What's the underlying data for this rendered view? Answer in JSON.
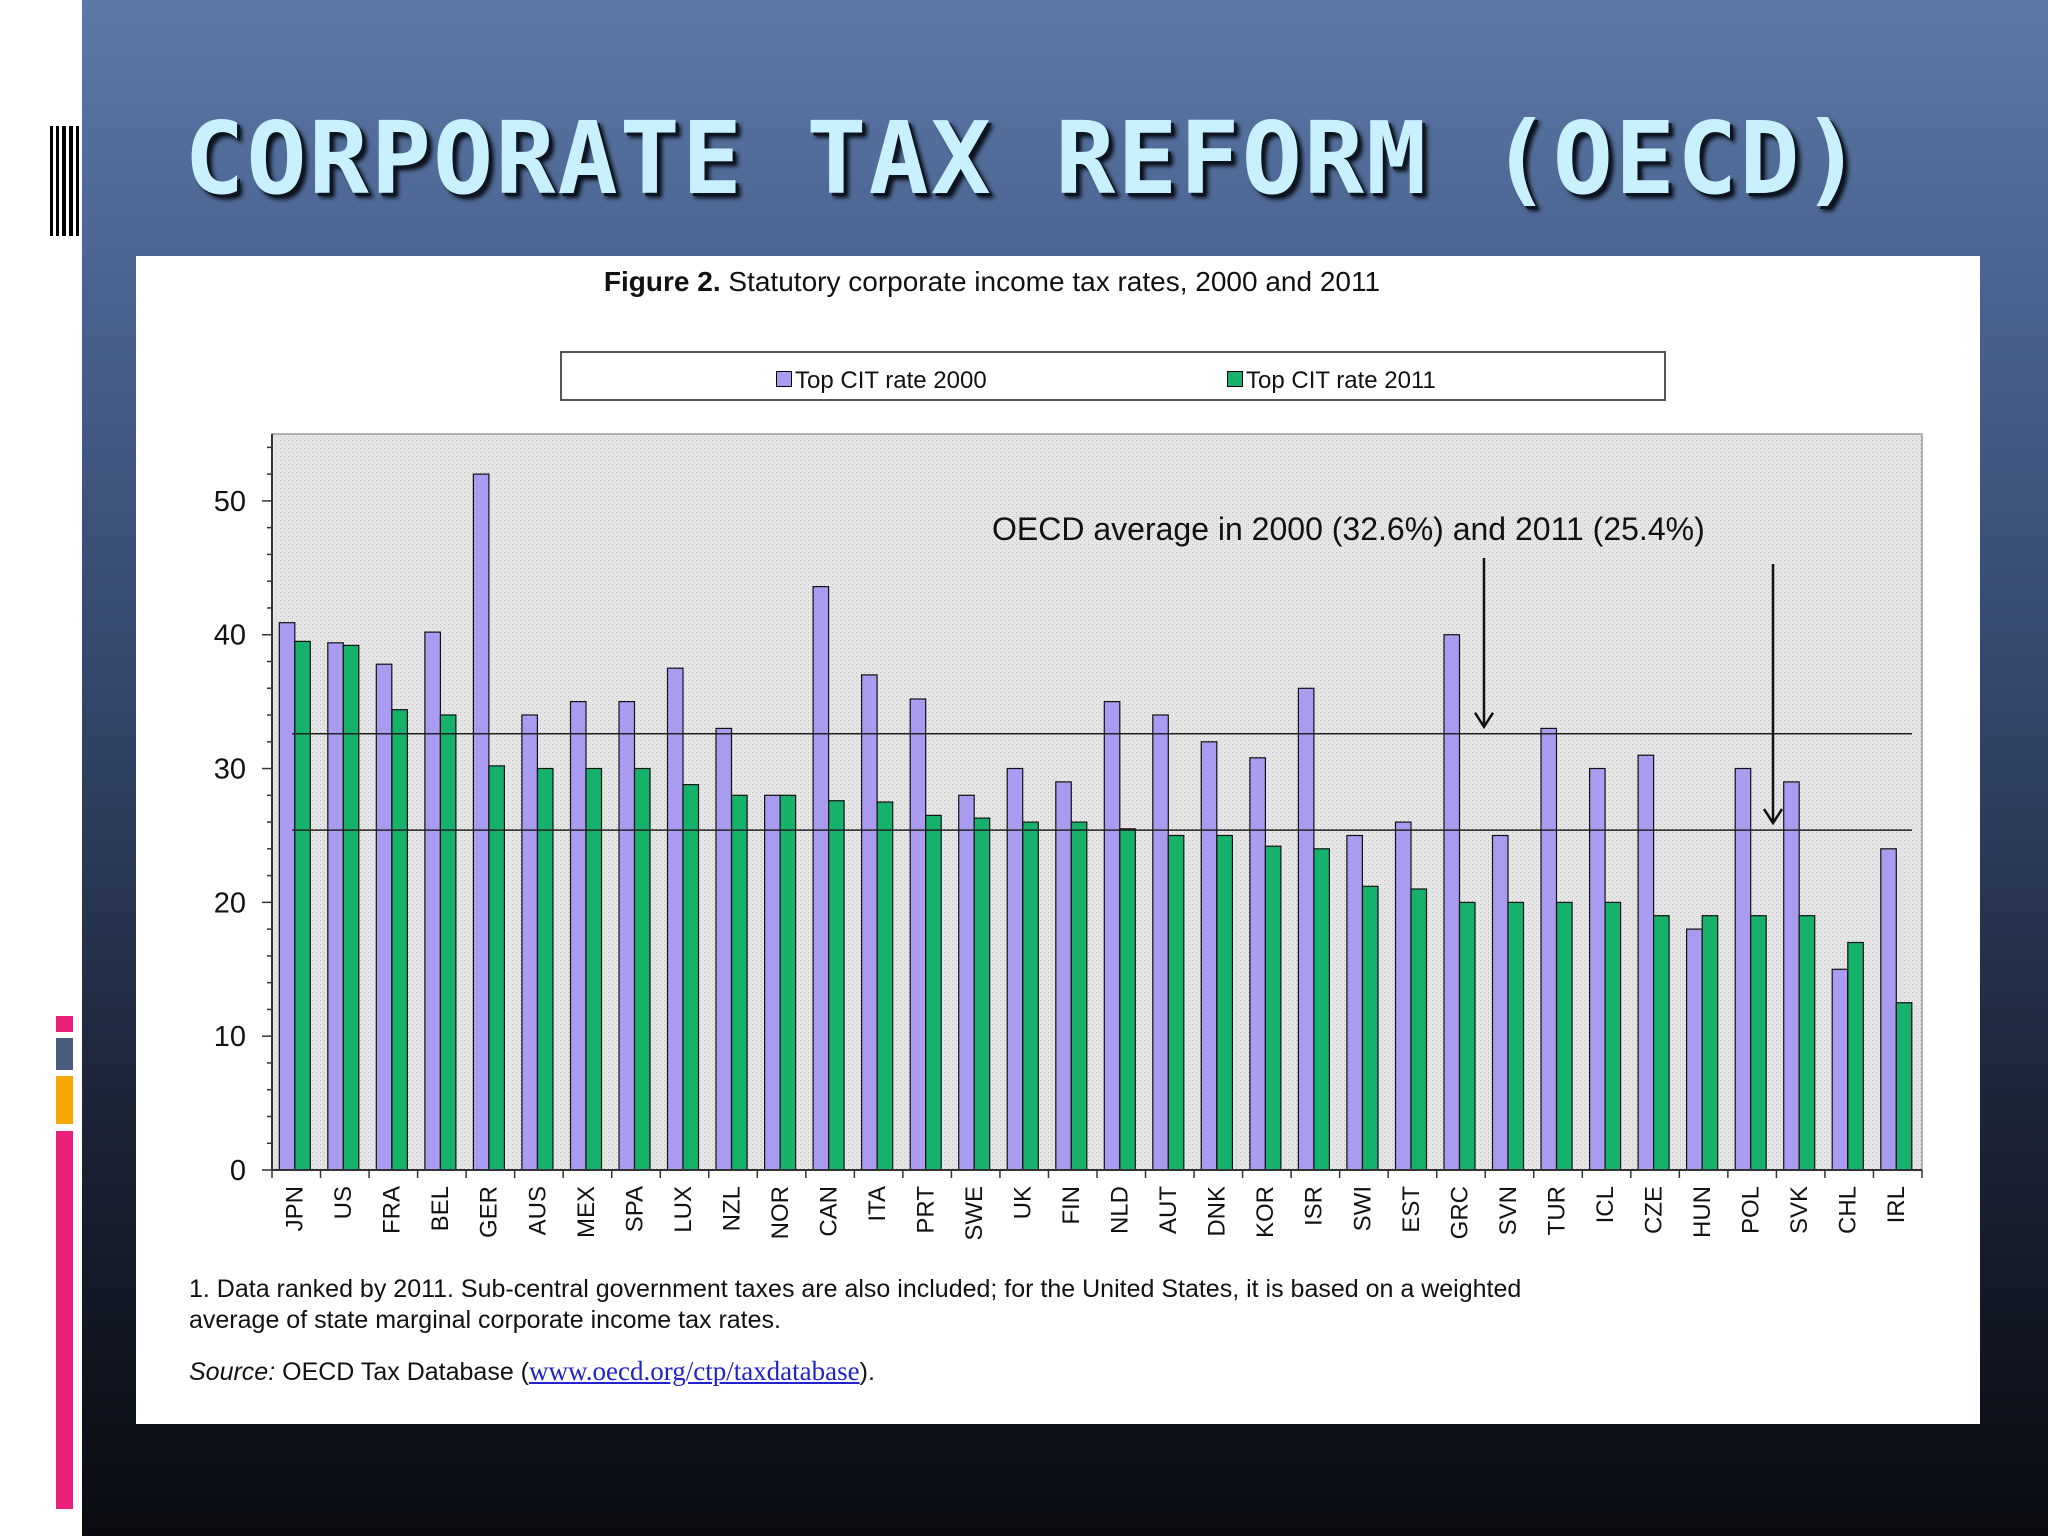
{
  "slide": {
    "title": "CORPORATE TAX REFORM (OECD)"
  },
  "figure": {
    "title_bold": "Figure 2.",
    "title_rest": "Statutory corporate income tax rates, 2000 and 2011",
    "annotation": "OECD average in 2000 (32.6%) and 2011 (25.4%)",
    "note_line1": "1. Data ranked by 2011. Sub-central government taxes are also included; for the United States, it is based on a weighted",
    "note_line2": "average of state marginal corporate income tax rates.",
    "source_label": "Source:",
    "source_text": "OECD Tax Database (",
    "source_link": "www.oecd.org/ctp/taxdatabase",
    "source_end": ")."
  },
  "colors": {
    "series_2000": "#a99cf0",
    "series_2011": "#16b26c",
    "plot_background": "#e4e4e4",
    "left_accent_pink": "#e8207a",
    "left_accent_orange": "#f7a800",
    "left_accent_slate": "#4a5d7a"
  },
  "chart_data": {
    "type": "bar",
    "title": "Figure 2. Statutory corporate income tax rates, 2000 and 2011",
    "xlabel": "",
    "ylabel": "",
    "ylim": [
      0,
      55
    ],
    "yticks": [
      0,
      10,
      20,
      30,
      40,
      50
    ],
    "grid": false,
    "legend_position": "top",
    "categories": [
      "JPN",
      "US",
      "FRA",
      "BEL",
      "GER",
      "AUS",
      "MEX",
      "SPA",
      "LUX",
      "NZL",
      "NOR",
      "CAN",
      "ITA",
      "PRT",
      "SWE",
      "UK",
      "FIN",
      "NLD",
      "AUT",
      "DNK",
      "KOR",
      "ISR",
      "SWI",
      "EST",
      "GRC",
      "SVN",
      "TUR",
      "ICL",
      "CZE",
      "HUN",
      "POL",
      "SVK",
      "CHL",
      "IRL"
    ],
    "series": [
      {
        "name": "Top CIT rate 2000",
        "values": [
          40.9,
          39.4,
          37.8,
          40.2,
          52.0,
          34.0,
          35.0,
          35.0,
          37.5,
          33.0,
          28.0,
          43.6,
          37.0,
          35.2,
          28.0,
          30.0,
          29.0,
          35.0,
          34.0,
          32.0,
          30.8,
          36.0,
          25.0,
          26.0,
          40.0,
          25.0,
          33.0,
          30.0,
          31.0,
          18.0,
          30.0,
          29.0,
          15.0,
          24.0
        ]
      },
      {
        "name": "Top CIT rate 2011",
        "values": [
          39.5,
          39.2,
          34.4,
          34.0,
          30.2,
          30.0,
          30.0,
          30.0,
          28.8,
          28.0,
          28.0,
          27.6,
          27.5,
          26.5,
          26.3,
          26.0,
          26.0,
          25.5,
          25.0,
          25.0,
          24.2,
          24.0,
          21.2,
          21.0,
          20.0,
          20.0,
          20.0,
          20.0,
          19.0,
          19.0,
          19.0,
          19.0,
          17.0,
          12.5
        ]
      }
    ],
    "reference_lines": [
      {
        "label": "OECD average 2000",
        "value": 32.6
      },
      {
        "label": "OECD average 2011",
        "value": 25.4
      }
    ]
  }
}
